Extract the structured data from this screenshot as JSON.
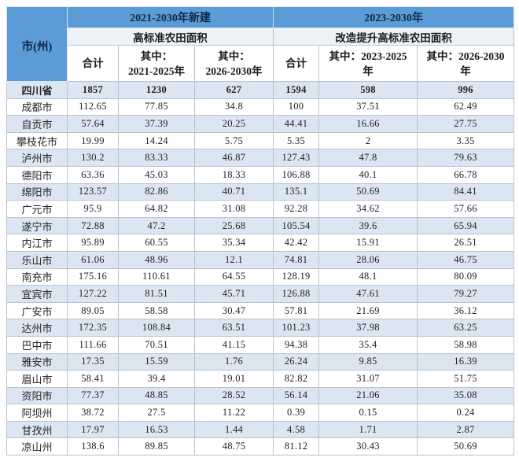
{
  "colors": {
    "header_blue": "#5b9cd6",
    "header_light": "#eef2f7",
    "row_alt": "#dce6f2",
    "grid_line": "#b9c4cf",
    "header_text": "#10284a",
    "body_text": "#1f1f1f"
  },
  "table": {
    "corner_label": "市(州)",
    "group_headers": [
      {
        "top": "2021-2030年新建",
        "sub": "高标准农田面积"
      },
      {
        "top": "2023-2030年",
        "sub": "改造提升高标准农田面积"
      }
    ],
    "sub_headers": [
      {
        "line1": "合计",
        "line2": ""
      },
      {
        "line1": "其中：",
        "line2": "2021-2025年"
      },
      {
        "line1": "其中：",
        "line2": "2026-2030年"
      },
      {
        "line1": "合计",
        "line2": ""
      },
      {
        "line1": "其中：2023-2025",
        "line2": "年"
      },
      {
        "line1": "其中：2026-2030",
        "line2": "年"
      }
    ],
    "rows": [
      {
        "region": "四川省",
        "total": true,
        "values": [
          "1857",
          "1230",
          "627",
          "1594",
          "598",
          "996"
        ]
      },
      {
        "region": "成都市",
        "total": false,
        "values": [
          "112.65",
          "77.85",
          "34.8",
          "100",
          "37.51",
          "62.49"
        ]
      },
      {
        "region": "自贡市",
        "total": false,
        "values": [
          "57.64",
          "37.39",
          "20.25",
          "44.41",
          "16.66",
          "27.75"
        ]
      },
      {
        "region": "攀枝花市",
        "total": false,
        "values": [
          "19.99",
          "14.24",
          "5.75",
          "5.35",
          "2",
          "3.35"
        ]
      },
      {
        "region": "泸州市",
        "total": false,
        "values": [
          "130.2",
          "83.33",
          "46.87",
          "127.43",
          "47.8",
          "79.63"
        ]
      },
      {
        "region": "德阳市",
        "total": false,
        "values": [
          "63.36",
          "45.03",
          "18.33",
          "106.88",
          "40.1",
          "66.78"
        ]
      },
      {
        "region": "绵阳市",
        "total": false,
        "values": [
          "123.57",
          "82.86",
          "40.71",
          "135.1",
          "50.69",
          "84.41"
        ]
      },
      {
        "region": "广元市",
        "total": false,
        "values": [
          "95.9",
          "64.82",
          "31.08",
          "92.28",
          "34.62",
          "57.66"
        ]
      },
      {
        "region": "遂宁市",
        "total": false,
        "values": [
          "72.88",
          "47.2",
          "25.68",
          "105.54",
          "39.6",
          "65.94"
        ]
      },
      {
        "region": "内江市",
        "total": false,
        "values": [
          "95.89",
          "60.55",
          "35.34",
          "42.42",
          "15.91",
          "26.51"
        ]
      },
      {
        "region": "乐山市",
        "total": false,
        "values": [
          "61.06",
          "48.96",
          "12.1",
          "74.81",
          "28.06",
          "46.75"
        ]
      },
      {
        "region": "南充市",
        "total": false,
        "values": [
          "175.16",
          "110.61",
          "64.55",
          "128.19",
          "48.1",
          "80.09"
        ]
      },
      {
        "region": "宜宾市",
        "total": false,
        "values": [
          "127.22",
          "81.51",
          "45.71",
          "126.88",
          "47.61",
          "79.27"
        ]
      },
      {
        "region": "广安市",
        "total": false,
        "values": [
          "89.05",
          "58.58",
          "30.47",
          "57.81",
          "21.69",
          "36.12"
        ]
      },
      {
        "region": "达州市",
        "total": false,
        "values": [
          "172.35",
          "108.84",
          "63.51",
          "101.23",
          "37.98",
          "63.25"
        ]
      },
      {
        "region": "巴中市",
        "total": false,
        "values": [
          "111.66",
          "70.51",
          "41.15",
          "94.38",
          "35.4",
          "58.98"
        ]
      },
      {
        "region": "雅安市",
        "total": false,
        "values": [
          "17.35",
          "15.59",
          "1.76",
          "26.24",
          "9.85",
          "16.39"
        ]
      },
      {
        "region": "眉山市",
        "total": false,
        "values": [
          "58.41",
          "39.4",
          "19.01",
          "82.82",
          "31.07",
          "51.75"
        ]
      },
      {
        "region": "资阳市",
        "total": false,
        "values": [
          "77.37",
          "48.85",
          "28.52",
          "56.14",
          "21.06",
          "35.08"
        ]
      },
      {
        "region": "阿坝州",
        "total": false,
        "values": [
          "38.72",
          "27.5",
          "11.22",
          "0.39",
          "0.15",
          "0.24"
        ]
      },
      {
        "region": "甘孜州",
        "total": false,
        "values": [
          "17.97",
          "16.53",
          "1.44",
          "4.58",
          "1.71",
          "2.87"
        ]
      },
      {
        "region": "凉山州",
        "total": false,
        "values": [
          "138.6",
          "89.85",
          "48.75",
          "81.12",
          "30.43",
          "50.69"
        ]
      }
    ]
  }
}
